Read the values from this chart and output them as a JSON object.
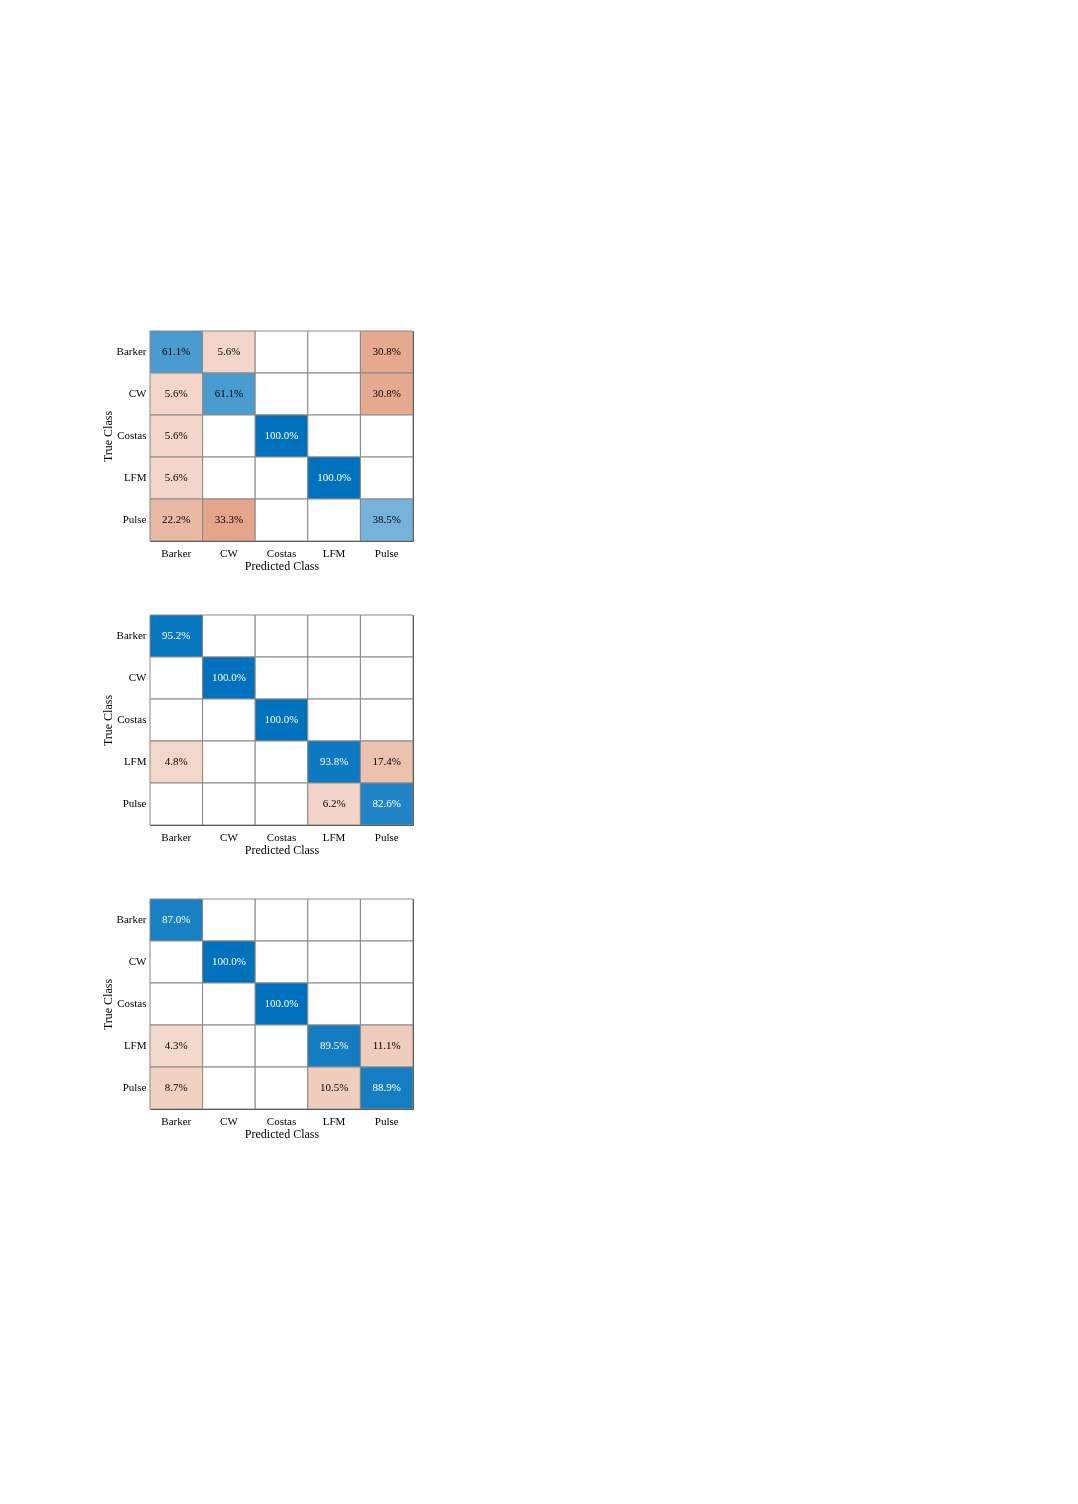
{
  "chart_data": [
    {
      "type": "heatmap",
      "xlabel": "Predicted Class",
      "ylabel": "True Class",
      "categories": [
        "Barker",
        "CW",
        "Costas",
        "LFM",
        "Pulse"
      ],
      "y_categories": [
        "Barker",
        "CW",
        "Costas",
        "LFM",
        "Pulse"
      ],
      "cells": [
        [
          61.1,
          5.6,
          null,
          null,
          30.8
        ],
        [
          5.6,
          61.1,
          null,
          null,
          30.8
        ],
        [
          5.6,
          null,
          100.0,
          null,
          null
        ],
        [
          5.6,
          null,
          null,
          100.0,
          null
        ],
        [
          22.2,
          33.3,
          null,
          null,
          38.5
        ]
      ],
      "cell_labels": [
        [
          "61.1%",
          "5.6%",
          null,
          null,
          "30.8%"
        ],
        [
          "5.6%",
          "61.1%",
          null,
          null,
          "30.8%"
        ],
        [
          "5.6%",
          null,
          "100.0%",
          null,
          null
        ],
        [
          "5.6%",
          null,
          null,
          "100.0%",
          null
        ],
        [
          "22.2%",
          "33.3%",
          null,
          null,
          "38.5%"
        ]
      ]
    },
    {
      "type": "heatmap",
      "xlabel": "Predicted Class",
      "ylabel": "True Class",
      "categories": [
        "Barker",
        "CW",
        "Costas",
        "LFM",
        "Pulse"
      ],
      "y_categories": [
        "Barker",
        "CW",
        "Costas",
        "LFM",
        "Pulse"
      ],
      "cells": [
        [
          95.2,
          null,
          null,
          null,
          null
        ],
        [
          null,
          100.0,
          null,
          null,
          null
        ],
        [
          null,
          null,
          100.0,
          null,
          null
        ],
        [
          4.8,
          null,
          null,
          93.8,
          17.4
        ],
        [
          null,
          null,
          null,
          6.2,
          82.6
        ]
      ],
      "cell_labels": [
        [
          "95.2%",
          null,
          null,
          null,
          null
        ],
        [
          null,
          "100.0%",
          null,
          null,
          null
        ],
        [
          null,
          null,
          "100.0%",
          null,
          null
        ],
        [
          "4.8%",
          null,
          null,
          "93.8%",
          "17.4%"
        ],
        [
          null,
          null,
          null,
          "6.2%",
          "82.6%"
        ]
      ]
    },
    {
      "type": "heatmap",
      "xlabel": "Predicted Class",
      "ylabel": "True Class",
      "categories": [
        "Barker",
        "CW",
        "Costas",
        "LFM",
        "Pulse"
      ],
      "y_categories": [
        "Barker",
        "CW",
        "Costas",
        "LFM",
        "Pulse"
      ],
      "cells": [
        [
          87.0,
          null,
          null,
          null,
          null
        ],
        [
          null,
          100.0,
          null,
          null,
          null
        ],
        [
          null,
          null,
          100.0,
          null,
          null
        ],
        [
          4.3,
          null,
          null,
          89.5,
          11.1
        ],
        [
          8.7,
          null,
          null,
          10.5,
          88.9
        ]
      ],
      "cell_labels": [
        [
          "87.0%",
          null,
          null,
          null,
          null
        ],
        [
          null,
          "100.0%",
          null,
          null,
          null
        ],
        [
          null,
          null,
          "100.0%",
          null,
          null
        ],
        [
          "4.3%",
          null,
          null,
          "89.5%",
          "11.1%"
        ],
        [
          "8.7%",
          null,
          null,
          "10.5%",
          "88.9%"
        ]
      ]
    }
  ]
}
